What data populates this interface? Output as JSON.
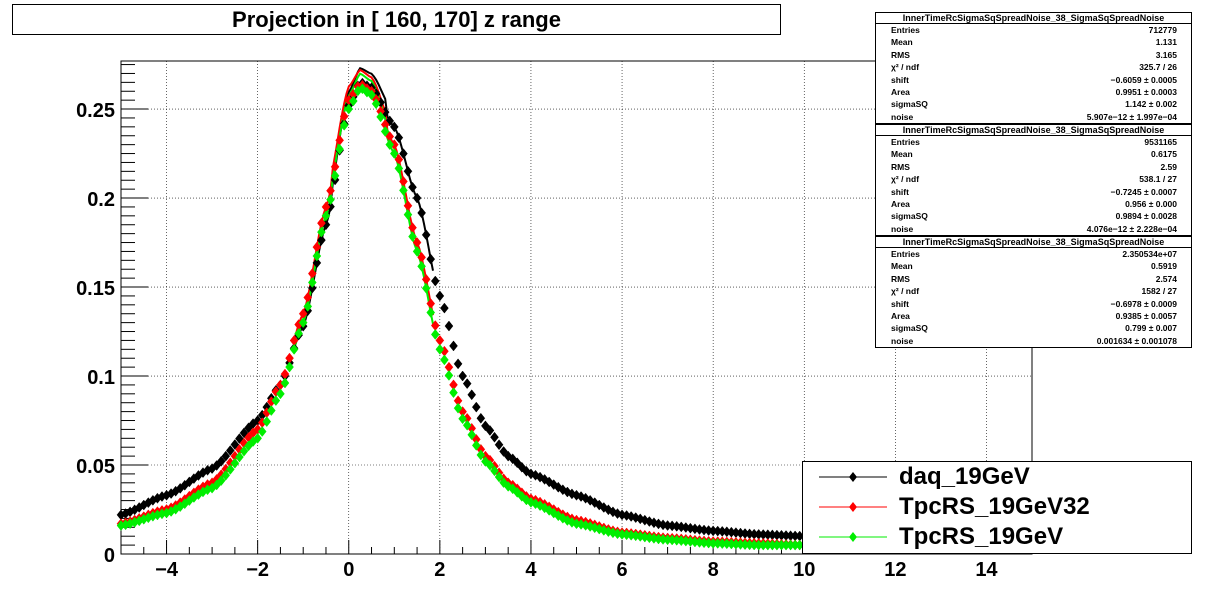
{
  "title": "Projection in [ 160, 170] z range",
  "chart_data": {
    "type": "scatter",
    "title": "Projection in [ 160, 170] z range",
    "xlabel": "",
    "ylabel": "",
    "xlim": [
      -5,
      15
    ],
    "ylim": [
      0,
      0.277
    ],
    "x_ticks": [
      -4,
      -2,
      0,
      2,
      4,
      6,
      8,
      10,
      12,
      14
    ],
    "x_tick_labels": [
      "−4",
      "−2",
      "0",
      "2",
      "4",
      "6",
      "8",
      "10",
      "12",
      "14"
    ],
    "y_ticks": [
      0,
      0.05,
      0.1,
      0.15,
      0.2,
      0.25
    ],
    "y_tick_labels": [
      "0",
      "0.05",
      "0.1",
      "0.15",
      "0.2",
      "0.25"
    ],
    "grid": true,
    "legend_position": "bottom-right",
    "series": [
      {
        "name": "daq_19GeV",
        "color": "#000000",
        "x": [
          -5,
          -4,
          -3,
          -2,
          -1.5,
          -1,
          -0.5,
          0,
          0.25,
          0.5,
          1,
          1.5,
          2,
          2.5,
          3,
          3.5,
          4,
          5,
          6,
          7,
          8,
          9,
          10
        ],
        "y": [
          0.022,
          0.033,
          0.048,
          0.075,
          0.095,
          0.128,
          0.185,
          0.252,
          0.265,
          0.262,
          0.24,
          0.2,
          0.145,
          0.1,
          0.072,
          0.055,
          0.045,
          0.033,
          0.022,
          0.016,
          0.013,
          0.011,
          0.01
        ]
      },
      {
        "name": "TpcRS_19GeV32",
        "color": "#ff0000",
        "x": [
          -5,
          -4,
          -3,
          -2,
          -1.5,
          -1,
          -0.5,
          0,
          0.25,
          0.5,
          1,
          1.5,
          2,
          2.5,
          3,
          3.5,
          4,
          5,
          6,
          7,
          8,
          9,
          10
        ],
        "y": [
          0.017,
          0.025,
          0.04,
          0.07,
          0.095,
          0.135,
          0.195,
          0.255,
          0.264,
          0.26,
          0.23,
          0.175,
          0.12,
          0.08,
          0.055,
          0.04,
          0.031,
          0.019,
          0.012,
          0.009,
          0.007,
          0.006,
          0.005
        ]
      },
      {
        "name": "TpcRS_19GeV",
        "color": "#00ee00",
        "x": [
          -5,
          -4,
          -3,
          -2,
          -1.5,
          -1,
          -0.5,
          0,
          0.25,
          0.5,
          1,
          1.5,
          2,
          2.5,
          3,
          3.5,
          4,
          5,
          6,
          7,
          8,
          9,
          10
        ],
        "y": [
          0.016,
          0.023,
          0.037,
          0.065,
          0.09,
          0.13,
          0.19,
          0.25,
          0.262,
          0.258,
          0.225,
          0.17,
          0.115,
          0.076,
          0.052,
          0.038,
          0.029,
          0.017,
          0.011,
          0.008,
          0.006,
          0.005,
          0.005
        ]
      }
    ]
  },
  "stats": [
    {
      "title": "InnerTimeRcSigmaSqSpreadNoise_38_SigmaSqSpreadNoise",
      "rows": [
        {
          "label": "Entries",
          "value": "712779"
        },
        {
          "label": "Mean",
          "value": "1.131"
        },
        {
          "label": "RMS",
          "value": "3.165"
        },
        {
          "label": "χ² / ndf",
          "value": "325.7 / 26"
        },
        {
          "label": "shift",
          "value": "−0.6059 ± 0.0005"
        },
        {
          "label": "Area",
          "value": "0.9951 ± 0.0003"
        },
        {
          "label": "sigmaSQ",
          "value": "1.142 ± 0.002"
        },
        {
          "label": "noise",
          "value": "5.907e−12 ± 1.997e−04"
        }
      ]
    },
    {
      "title": "InnerTimeRcSigmaSqSpreadNoise_38_SigmaSqSpreadNoise",
      "rows": [
        {
          "label": "Entries",
          "value": "9531165"
        },
        {
          "label": "Mean",
          "value": "0.6175"
        },
        {
          "label": "RMS",
          "value": "2.59"
        },
        {
          "label": "χ² / ndf",
          "value": "538.1 / 27"
        },
        {
          "label": "shift",
          "value": "−0.7245 ± 0.0007"
        },
        {
          "label": "Area",
          "value": "0.956 ± 0.000"
        },
        {
          "label": "sigmaSQ",
          "value": "0.9894 ± 0.0028"
        },
        {
          "label": "noise",
          "value": "4.076e−12 ± 2.228e−04"
        }
      ]
    },
    {
      "title": "InnerTimeRcSigmaSqSpreadNoise_38_SigmaSqSpreadNoise",
      "rows": [
        {
          "label": "Entries",
          "value": "2.350534e+07"
        },
        {
          "label": "Mean",
          "value": "0.5919"
        },
        {
          "label": "RMS",
          "value": "2.574"
        },
        {
          "label": "χ² / ndf",
          "value": "1582 / 27"
        },
        {
          "label": "shift",
          "value": "−0.6978 ± 0.0009"
        },
        {
          "label": "Area",
          "value": "0.9385 ± 0.0057"
        },
        {
          "label": "sigmaSQ",
          "value": "0.799 ± 0.007"
        },
        {
          "label": "noise",
          "value": "0.001634 ± 0.001078"
        }
      ]
    }
  ],
  "legend": [
    {
      "label": "daq_19GeV",
      "color": "#000000"
    },
    {
      "label": "TpcRS_19GeV32",
      "color": "#ff0000"
    },
    {
      "label": "TpcRS_19GeV",
      "color": "#00ee00"
    }
  ]
}
